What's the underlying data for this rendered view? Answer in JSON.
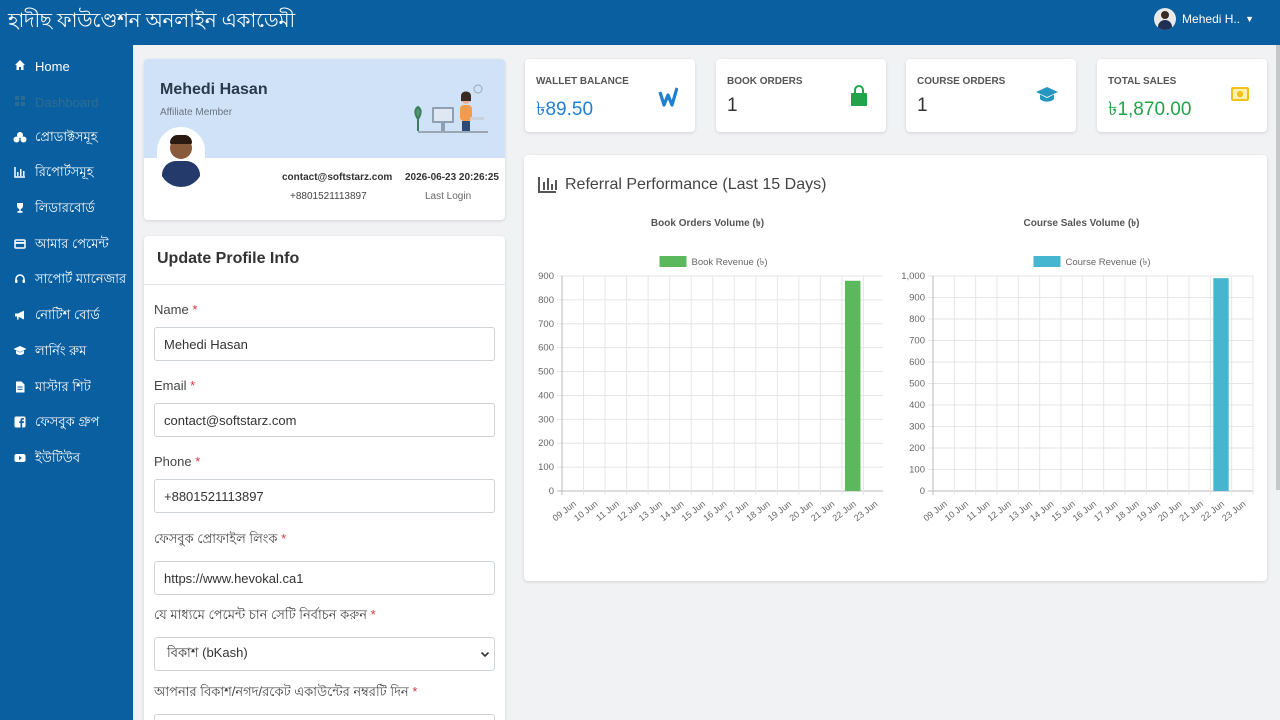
{
  "app": {
    "title": "হাদীছ ফাউণ্ডেশন অনলাইন একাডেমী"
  },
  "user": {
    "name": "Mehedi H.."
  },
  "sidebar": {
    "items": [
      {
        "label": "Home",
        "icon": "home-icon"
      },
      {
        "label": "Dashboard",
        "icon": "dashboard-icon"
      },
      {
        "label": "প্রোডাক্টসমূহ",
        "icon": "products-icon"
      },
      {
        "label": "রিপোর্টসমূহ",
        "icon": "reports-icon"
      },
      {
        "label": "লিডারবোর্ড",
        "icon": "trophy-icon"
      },
      {
        "label": "আমার পেমেন্ট",
        "icon": "payment-icon"
      },
      {
        "label": "সাপোর্ট ম্যানেজার",
        "icon": "headset-icon"
      },
      {
        "label": "নোটিশ বোর্ড",
        "icon": "megaphone-icon"
      },
      {
        "label": "লার্নিং রুম",
        "icon": "graduation-icon"
      },
      {
        "label": "মাস্টার শিট",
        "icon": "file-icon"
      },
      {
        "label": "ফেসবুক গ্রুপ",
        "icon": "facebook-icon"
      },
      {
        "label": "ইউটিউব",
        "icon": "youtube-icon"
      }
    ]
  },
  "profile": {
    "name": "Mehedi Hasan",
    "role": "Affiliate Member",
    "email": "contact@softstarz.com",
    "phone": "+8801521113897",
    "last_login_time": "2026-06-23 20:26:25",
    "last_login_label": "Last Login"
  },
  "form": {
    "title": "Update Profile Info",
    "name_label": "Name",
    "name_value": "Mehedi Hasan",
    "email_label": "Email",
    "email_value": "contact@softstarz.com",
    "phone_label": "Phone",
    "phone_value": "+8801521113897",
    "facebook_label": "ফেসবুক প্রোফাইল লিংক",
    "facebook_value": "https://www.hevokal.ca1",
    "payment_method_label": "যে মাধ্যমে পেমেন্ট চান সেটি নির্বাচন করুন",
    "payment_method_value": "বিকাশ (bKash)",
    "account_label": "আপনার বিকাশ/নগদ/রকেট একাউন্টের নম্বরটি দিন",
    "required_mark": "*"
  },
  "stats": [
    {
      "label": "WALLET BALANCE",
      "value": "৳89.50",
      "icon": "wallet-icon",
      "color": "#1f7fd4"
    },
    {
      "label": "BOOK ORDERS",
      "value": "1",
      "icon": "shopping-bag-icon",
      "color": "#333333"
    },
    {
      "label": "COURSE ORDERS",
      "value": "1",
      "icon": "graduation-cap-icon",
      "color": "#333333"
    },
    {
      "label": "TOTAL SALES",
      "value": "৳1,870.00",
      "icon": "money-icon",
      "color": "#22a34a"
    }
  ],
  "performance": {
    "title": "Referral Performance (Last 15 Days)"
  },
  "chart_data": [
    {
      "type": "bar",
      "title": "Book Orders Volume (৳)",
      "categories": [
        "09 Jun",
        "10 Jun",
        "11 Jun",
        "12 Jun",
        "13 Jun",
        "14 Jun",
        "15 Jun",
        "16 Jun",
        "17 Jun",
        "18 Jun",
        "19 Jun",
        "20 Jun",
        "21 Jun",
        "22 Jun",
        "23 Jun"
      ],
      "series": [
        {
          "name": "Book Revenue (৳)",
          "values": [
            0,
            0,
            0,
            0,
            0,
            0,
            0,
            0,
            0,
            0,
            0,
            0,
            0,
            880,
            0
          ],
          "color": "#5cb85c"
        }
      ],
      "ylim": [
        0,
        900
      ],
      "yticks": [
        "0",
        "100",
        "200",
        "300",
        "400",
        "500",
        "600",
        "700",
        "800",
        "900"
      ],
      "grid": true,
      "legend": "top"
    },
    {
      "type": "bar",
      "title": "Course Sales Volume (৳)",
      "categories": [
        "09 Jun",
        "10 Jun",
        "11 Jun",
        "12 Jun",
        "13 Jun",
        "14 Jun",
        "15 Jun",
        "16 Jun",
        "17 Jun",
        "18 Jun",
        "19 Jun",
        "20 Jun",
        "21 Jun",
        "22 Jun",
        "23 Jun"
      ],
      "series": [
        {
          "name": "Course Revenue (৳)",
          "values": [
            0,
            0,
            0,
            0,
            0,
            0,
            0,
            0,
            0,
            0,
            0,
            0,
            0,
            990,
            0
          ],
          "color": "#46b5cf"
        }
      ],
      "ylim": [
        0,
        1000
      ],
      "yticks": [
        "0",
        "100",
        "200",
        "300",
        "400",
        "500",
        "600",
        "700",
        "800",
        "900",
        "1,000"
      ],
      "grid": true,
      "legend": "top"
    }
  ]
}
